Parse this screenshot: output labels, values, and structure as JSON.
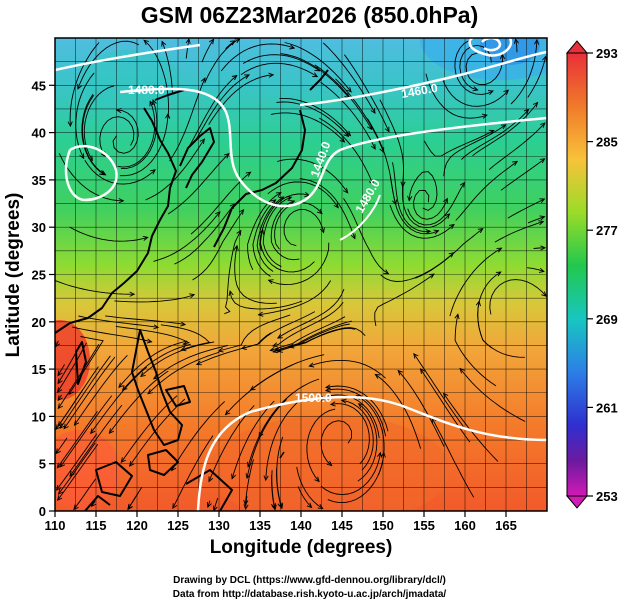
{
  "title": "GSM 06Z23Mar2026 (850.0hPa)",
  "x_axis": {
    "label": "Longitude (degrees)",
    "ticks": [
      "110",
      "115",
      "120",
      "125",
      "130",
      "135",
      "140",
      "145",
      "150",
      "155",
      "160",
      "165"
    ]
  },
  "y_axis": {
    "label": "Latitude (degrees)",
    "ticks": [
      "0",
      "5",
      "10",
      "15",
      "20",
      "25",
      "30",
      "35",
      "40",
      "45"
    ]
  },
  "colorbar": {
    "ticks": [
      "293",
      "285",
      "277",
      "269",
      "261",
      "253"
    ],
    "colors": [
      "#e8303a",
      "#f07a2a",
      "#f8c23a",
      "#9adc28",
      "#22c84e",
      "#18c6c0",
      "#2c7fe6",
      "#2f2fd0",
      "#6b1aa0",
      "#d21ab5"
    ]
  },
  "contour_labels": [
    "1480.0",
    "1500.0",
    "1440.0",
    "1460.0",
    "1480.0"
  ],
  "credits": [
    "Drawing by DCL (https://www.gfd-dennou.org/library/dcl/)",
    "Data from http://database.rish.kyoto-u.ac.jp/arch/jmadata/"
  ]
}
